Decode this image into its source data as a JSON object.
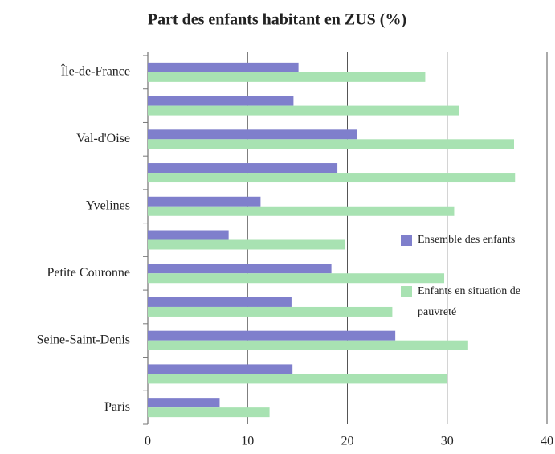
{
  "chart_data": {
    "type": "hbar",
    "title": "Part des enfants habitant en ZUS (%)",
    "categories": [
      "Île-de-France",
      null,
      "Val-d'Oise",
      null,
      "Yvelines",
      null,
      "Petite Couronne",
      null,
      "Seine-Saint-Denis",
      null,
      "Paris"
    ],
    "series": [
      {
        "name": "Ensemble des enfants",
        "color": "#7f7fcc",
        "values": [
          15.1,
          14.6,
          21.0,
          19.0,
          11.3,
          8.1,
          18.4,
          14.4,
          24.8,
          14.5,
          7.2
        ]
      },
      {
        "name": "Enfants en situation de pauvreté",
        "color": "#a8e2b2",
        "values": [
          27.8,
          31.2,
          36.7,
          36.8,
          30.7,
          19.8,
          29.7,
          24.5,
          32.1,
          30.0,
          12.2
        ]
      }
    ],
    "xlim": [
      0,
      40
    ],
    "xticks": [
      0,
      10,
      20,
      30,
      40
    ],
    "grid": true,
    "legend": "right"
  }
}
